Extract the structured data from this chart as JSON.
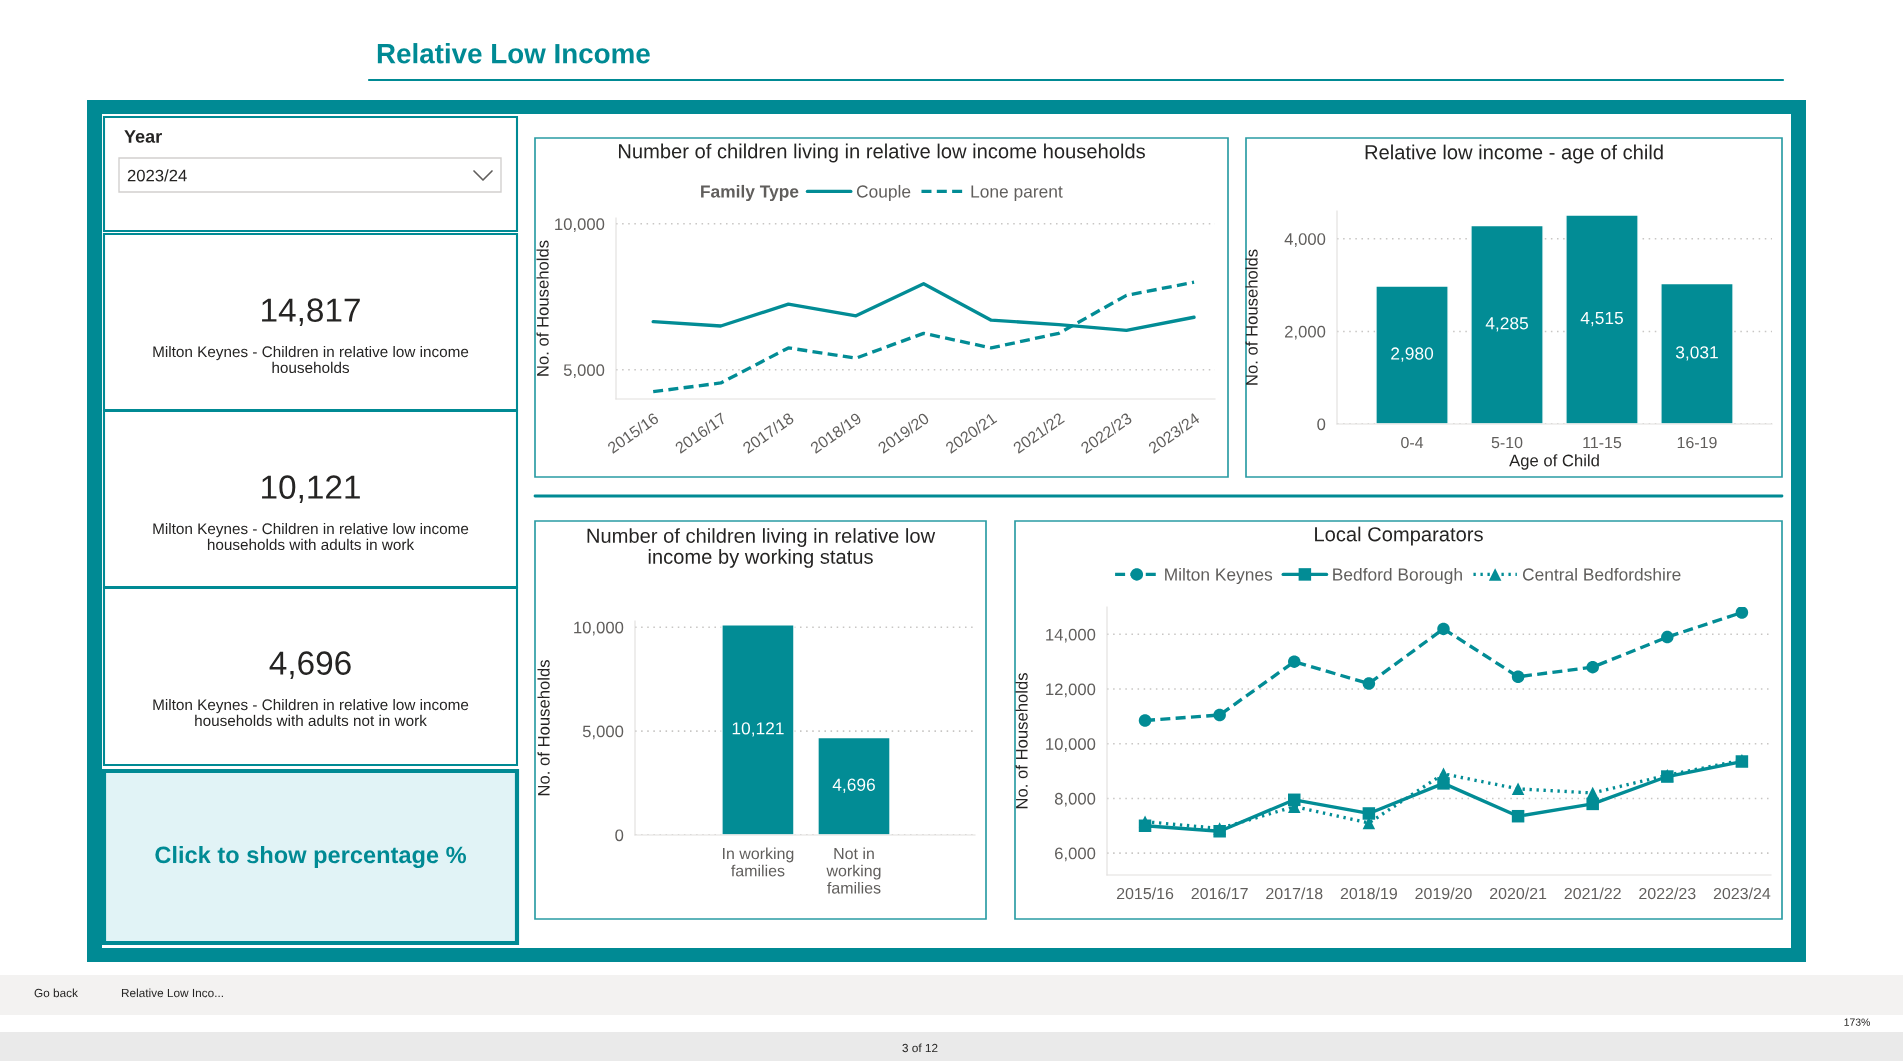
{
  "chart_data": [
    {
      "type": "other",
      "title": "Relative Low Income",
      "annotations": [
        "Go back",
        "Relative Low Inco...",
        "3 of 12",
        "173%"
      ]
    },
    {
      "type": "other",
      "title": "Year",
      "annotations": [
        "2023/24"
      ]
    },
    {
      "type": "other",
      "title": "14,817",
      "subtitle": "Milton Keynes - Children in relative low income households"
    },
    {
      "type": "other",
      "title": "10,121",
      "subtitle": "Milton Keynes - Children in relative low income households with adults in work"
    },
    {
      "type": "other",
      "title": "4,696",
      "subtitle": "Milton Keynes - Children in relative low income households with adults not in work"
    },
    {
      "type": "other",
      "title": "Click to show percentage %"
    },
    {
      "type": "line",
      "title": "Number of children living in relative low income households",
      "legend_title": "Family Type",
      "legend": "top",
      "ylabel": "No. of Households",
      "categories": [
        "2015/16",
        "2016/17",
        "2017/18",
        "2018/19",
        "2019/20",
        "2020/21",
        "2021/22",
        "2022/23",
        "2023/24"
      ],
      "series": [
        {
          "name": "Couple",
          "color": "#028c95",
          "line_style": "solid",
          "values": [
            6650,
            6500,
            7250,
            6850,
            7950,
            6700,
            6550,
            6350,
            6800
          ]
        },
        {
          "name": "Lone parent",
          "color": "#028c95",
          "line_style": "dashed",
          "values": [
            4250,
            4550,
            5750,
            5400,
            6250,
            5750,
            6250,
            7550,
            8000
          ]
        }
      ],
      "ylim": [
        4000,
        10200
      ],
      "yticks": [
        {
          "value": 5000,
          "label": "5,000"
        },
        {
          "value": 10000,
          "label": "10,000"
        }
      ],
      "grid": "y"
    },
    {
      "type": "bar",
      "title": "Relative low income - age of child",
      "xlabel": "Age of Child",
      "ylabel": "No. of Households",
      "categories": [
        "0-4",
        "5-10",
        "11-15",
        "16-19"
      ],
      "values": [
        2980,
        4285,
        4515,
        3031
      ],
      "value_labels": [
        "2,980",
        "4,285",
        "4,515",
        "3,031"
      ],
      "color": "#028c95",
      "ylim": [
        0,
        4600
      ],
      "yticks": [
        0,
        {
          "value": 2000,
          "label": "2,000"
        },
        {
          "value": 4000,
          "label": "4,000"
        }
      ],
      "grid": "y"
    },
    {
      "type": "bar",
      "title": "Number of children living in relative low income by working status",
      "ylabel": "No. of Households",
      "categories": [
        "In working families",
        "Not in working families"
      ],
      "values": [
        10121,
        4696
      ],
      "value_labels": [
        "10,121",
        "4,696"
      ],
      "color": "#028c95",
      "ylim": [
        0,
        10300
      ],
      "yticks": [
        0,
        {
          "value": 5000,
          "label": "5,000"
        },
        {
          "value": 10000,
          "label": "10,000"
        }
      ],
      "grid": "y"
    },
    {
      "type": "line",
      "title": "Local Comparators",
      "legend": "top",
      "ylabel": "No. of Households",
      "categories": [
        "2015/16",
        "2016/17",
        "2017/18",
        "2018/19",
        "2019/20",
        "2020/21",
        "2021/22",
        "2022/23",
        "2023/24"
      ],
      "series": [
        {
          "name": "Milton Keynes",
          "color": "#028c95",
          "line_style": "dashed",
          "marker": "circle",
          "values": [
            10850,
            11050,
            13000,
            12200,
            14200,
            12450,
            12800,
            13900,
            14800
          ]
        },
        {
          "name": "Bedford Borough",
          "color": "#028c95",
          "line_style": "solid",
          "marker": "square",
          "values": [
            7000,
            6800,
            7950,
            7450,
            8550,
            7350,
            7800,
            8800,
            9350
          ]
        },
        {
          "name": "Central Bedfordshire",
          "color": "#028c95",
          "line_style": "dotted",
          "marker": "triangle",
          "values": [
            7150,
            6900,
            7700,
            7100,
            8900,
            8350,
            8200,
            8850,
            9400
          ]
        }
      ],
      "ylim": [
        5200,
        15000
      ],
      "yticks": [
        {
          "value": 6000,
          "label": "6,000"
        },
        {
          "value": 8000,
          "label": "8,000"
        },
        {
          "value": 10000,
          "label": "10,000"
        },
        {
          "value": 12000,
          "label": "12,000"
        },
        {
          "value": 14000,
          "label": "14,000"
        }
      ],
      "grid": "y"
    }
  ]
}
